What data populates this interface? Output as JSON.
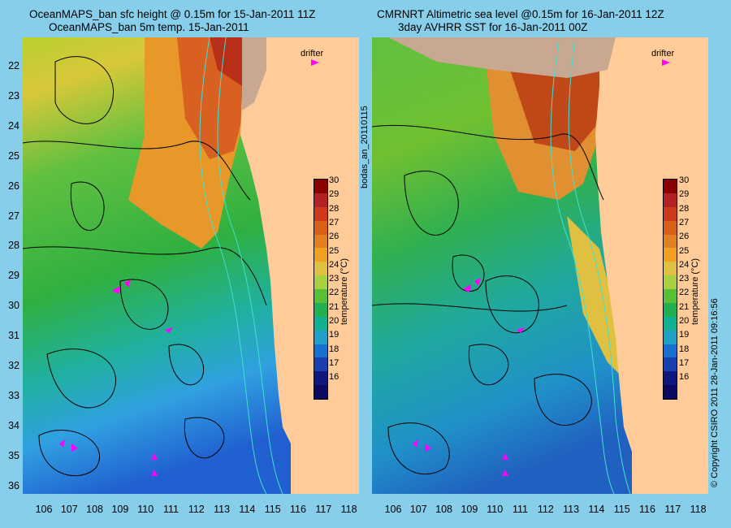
{
  "titles": {
    "left_line1": "OceanMAPS_ban sfc height @ 0.15m for 15-Jan-2011 11Z",
    "left_line2": "OceanMAPS_ban 5m temp. 15-Jan-2011",
    "right_line1": "CMRNRT Altimetric sea level  @0.15m  for 16-Jan-2011 12Z",
    "right_line2": "3day AVHRR SST for 16-Jan-2011 00Z"
  },
  "y_ticks": [
    "22",
    "23",
    "24",
    "25",
    "26",
    "27",
    "28",
    "29",
    "30",
    "31",
    "32",
    "33",
    "34",
    "35",
    "36"
  ],
  "x_ticks": [
    "106",
    "107",
    "108",
    "109",
    "110",
    "111",
    "112",
    "113",
    "114",
    "115",
    "116",
    "117",
    "118"
  ],
  "colorbar": {
    "ticks": [
      "30",
      "29",
      "28",
      "27",
      "26",
      "25",
      "24",
      "23",
      "22",
      "21",
      "20",
      "19",
      "18",
      "17",
      "16"
    ],
    "label": "temperature (°C)",
    "colors": [
      "#8b0000",
      "#b22222",
      "#cd3a1a",
      "#d86018",
      "#e08020",
      "#f0a020",
      "#e0c040",
      "#a8d040",
      "#58c038",
      "#20b050",
      "#10b090",
      "#20a0c8",
      "#1870d0",
      "#1840b0",
      "#101880",
      "#0a0a60"
    ]
  },
  "legend": {
    "drifter_label": "drifter",
    "drifter_color": "#ff00ff"
  },
  "side_text": {
    "bodas": "bodas_an_20110115",
    "copyright": "© Copyright CSIRO 2011   28-Jan-2011 09:16:56"
  },
  "colors": {
    "background": "#87ceeb",
    "land": "#ffcc99",
    "drifter": "#ff00ff",
    "contour": "#000000",
    "isobath": "#40e0d0"
  }
}
